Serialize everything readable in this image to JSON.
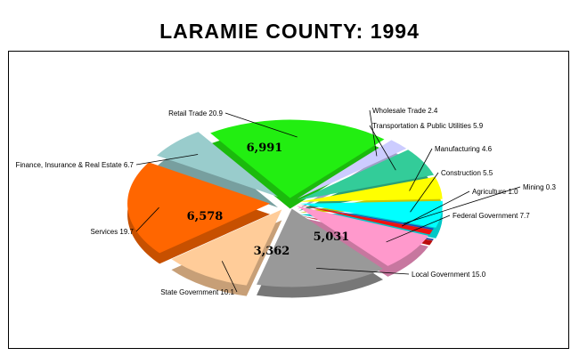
{
  "title": "LARAMIE COUNTY:  1994",
  "chart_data": {
    "type": "pie",
    "title": "LARAMIE COUNTY:  1994",
    "units": "percent of employment",
    "slices": [
      {
        "name": "Retail Trade",
        "value": 20.9,
        "label": "Retail Trade 20.9",
        "count": "6,991",
        "color": "#22ee11"
      },
      {
        "name": "Wholesale Trade",
        "value": 2.4,
        "label": "Wholesale Trade 2.4",
        "count": "",
        "color": "#ccccff"
      },
      {
        "name": "Transportation & Public Utilities",
        "value": 5.9,
        "label": "Transportation & Public Utilities 5.9",
        "count": "",
        "color": "#33cc99"
      },
      {
        "name": "Manufacturing",
        "value": 4.6,
        "label": "Manufacturing 4.6",
        "count": "",
        "color": "#ffff00"
      },
      {
        "name": "Construction",
        "value": 5.5,
        "label": "Construction 5.5",
        "count": "",
        "color": "#00ffff"
      },
      {
        "name": "Mining",
        "value": 0.3,
        "label": "Mining 0.3",
        "count": "",
        "color": "#1f3fbf"
      },
      {
        "name": "Agriculture",
        "value": 1.0,
        "label": "Agriculture 1.0",
        "count": "",
        "color": "#ee1111"
      },
      {
        "name": "Federal Government",
        "value": 7.7,
        "label": "Federal Government 7.7",
        "count": "",
        "color": "#ff99cc"
      },
      {
        "name": "Local Government",
        "value": 15.0,
        "label": "Local Government 15.0",
        "count": "5,031",
        "color": "#999999"
      },
      {
        "name": "State Government",
        "value": 10.1,
        "label": "State Government 10.1",
        "count": "3,362",
        "color": "#ffcc99"
      },
      {
        "name": "Services",
        "value": 19.7,
        "label": "Services 19.7",
        "count": "6,578",
        "color": "#ff6600"
      },
      {
        "name": "Finance, Insurance & Real Estate",
        "value": 6.7,
        "label": "Finance, Insurance & Real Estate 6.7",
        "count": "",
        "color": "#99cccc"
      }
    ]
  }
}
